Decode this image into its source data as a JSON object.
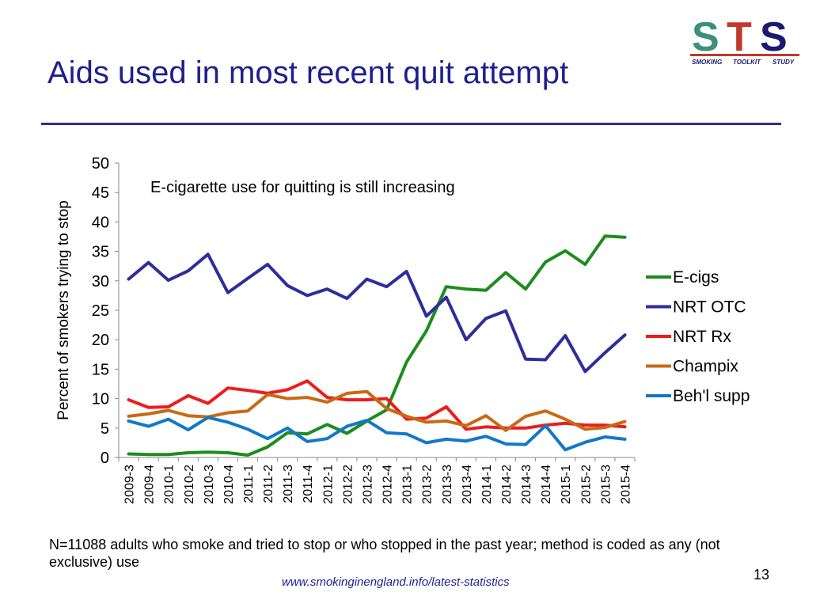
{
  "slide": {
    "title": "Aids used in most recent quit attempt",
    "footnote": "N=11088 adults who smoke and tried to stop or who stopped in the past year; method is coded as any (not exclusive) use",
    "link": "www.smokinginengland.info/latest-statistics",
    "page_number": "13"
  },
  "logo": {
    "text": "STS",
    "subtitle_left": "SMOKING",
    "subtitle_mid": "TOOLKIT",
    "subtitle_right": "STUDY",
    "colors": {
      "s": "#3e8f7a",
      "t": "#c0392b",
      "s2": "#1a1a6e",
      "bar": "#c0392b"
    }
  },
  "chart_data": {
    "type": "line",
    "annotation": "E-cigarette use for quitting is still increasing",
    "ylabel": "Percent of smokers trying to stop",
    "xlabel": "",
    "ylim": [
      0,
      50
    ],
    "yticks": [
      0,
      5,
      10,
      15,
      20,
      25,
      30,
      35,
      40,
      45,
      50
    ],
    "grid": false,
    "legend_position": "right",
    "categories": [
      "2009-3",
      "2009-4",
      "2010-1",
      "2010-2",
      "2010-3",
      "2010-4",
      "2011-1",
      "2011-2",
      "2011-3",
      "2011-4",
      "2012-1",
      "2012-2",
      "2012-3",
      "2012-4",
      "2013-1",
      "2013-2",
      "2013-3",
      "2013-4",
      "2014-1",
      "2014-2",
      "2014-3",
      "2014-4",
      "2015-1",
      "2015-2",
      "2015-3",
      "2015-4"
    ],
    "series": [
      {
        "name": "E-cigs",
        "color": "#1e8c1e",
        "values": [
          0.6,
          0.5,
          0.5,
          0.8,
          0.9,
          0.8,
          0.4,
          1.8,
          4.2,
          4.0,
          5.6,
          4.1,
          6.2,
          8.1,
          16.2,
          21.5,
          29.0,
          28.6,
          28.4,
          31.4,
          28.6,
          33.2,
          35.1,
          32.8,
          37.6,
          37.4
        ]
      },
      {
        "name": "NRT OTC",
        "color": "#2e2e9a",
        "values": [
          30.3,
          33.1,
          30.1,
          31.7,
          34.5,
          28.0,
          30.4,
          32.8,
          29.2,
          27.5,
          28.6,
          27.0,
          30.3,
          29.0,
          31.6,
          24.0,
          27.2,
          20.0,
          23.6,
          24.9,
          16.7,
          16.6,
          20.7,
          14.6,
          17.8,
          20.8
        ]
      },
      {
        "name": "NRT Rx",
        "color": "#ee1c1c",
        "values": [
          9.8,
          8.5,
          8.6,
          10.5,
          9.2,
          11.8,
          11.4,
          10.9,
          11.5,
          13.0,
          10.2,
          9.8,
          9.8,
          10.0,
          6.5,
          6.7,
          8.6,
          4.8,
          5.2,
          5.0,
          5.0,
          5.5,
          5.8,
          5.5,
          5.5,
          5.2
        ]
      },
      {
        "name": "Champix",
        "color": "#c86a14",
        "values": [
          7.0,
          7.4,
          8.0,
          7.1,
          6.9,
          7.6,
          7.9,
          10.7,
          10.0,
          10.2,
          9.4,
          10.9,
          11.2,
          8.3,
          7.0,
          6.0,
          6.2,
          5.4,
          7.1,
          4.6,
          7.0,
          7.9,
          6.5,
          4.8,
          5.1,
          6.1
        ]
      },
      {
        "name": "Beh'l supp",
        "color": "#1478c8",
        "values": [
          6.2,
          5.3,
          6.5,
          4.7,
          6.8,
          6.0,
          4.8,
          3.2,
          5.0,
          2.7,
          3.2,
          5.3,
          6.3,
          4.2,
          4.0,
          2.5,
          3.1,
          2.8,
          3.6,
          2.3,
          2.2,
          5.4,
          1.3,
          2.6,
          3.5,
          3.1
        ]
      }
    ]
  }
}
